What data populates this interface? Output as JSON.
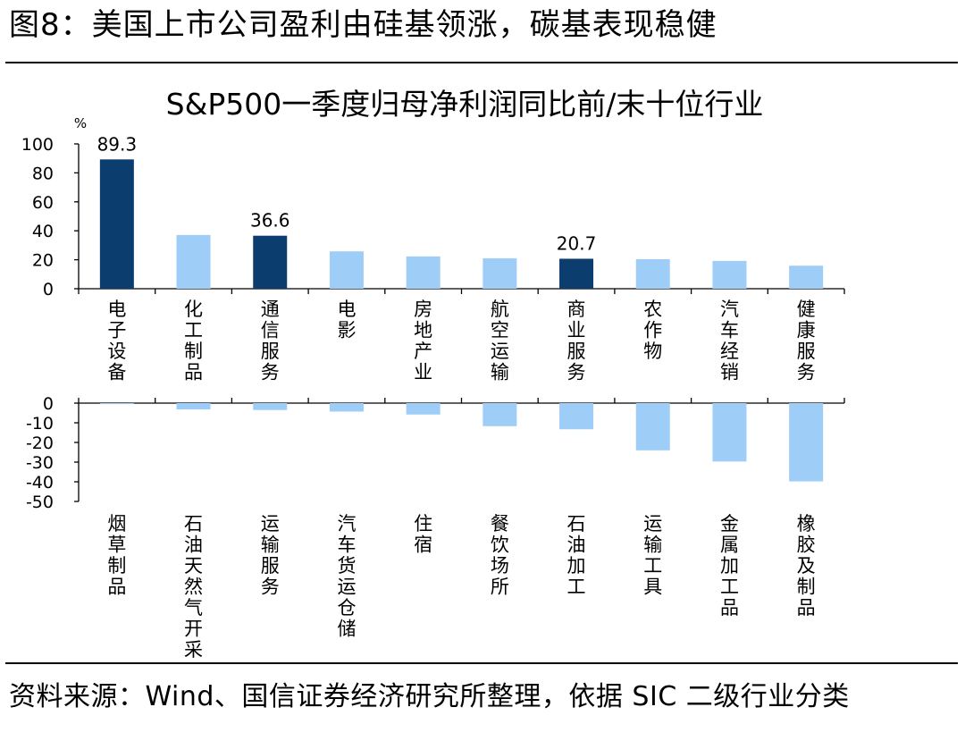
{
  "figure_title": "图8：美国上市公司盈利由硅基领涨，碳基表现稳健",
  "source": "资料来源：Wind、国信证券经济研究所整理，依据 SIC 二级行业分类",
  "colors": {
    "highlight": "#0b3d6e",
    "normal": "#9ecdf7",
    "axis": "#000000"
  },
  "chart_data": [
    {
      "type": "bar",
      "title": "S&P500一季度归母净利润同比前/末十位行业",
      "ylabel": "%",
      "ylim": [
        0,
        100
      ],
      "yticks": [
        0,
        20,
        40,
        60,
        80,
        100
      ],
      "categories": [
        "电子设备",
        "化工制品",
        "通信服务",
        "电影",
        "房地产业",
        "航空运输",
        "商业服务",
        "农作物",
        "汽车经销",
        "健康服务"
      ],
      "values": [
        89.3,
        37.1,
        36.6,
        25.8,
        22.3,
        21.0,
        20.7,
        20.4,
        19.2,
        15.9
      ],
      "highlighted": [
        true,
        false,
        true,
        false,
        false,
        false,
        true,
        false,
        false,
        false
      ],
      "data_labels": [
        "89.3",
        "",
        "36.6",
        "",
        "",
        "",
        "20.7",
        "",
        "",
        ""
      ],
      "grid": false,
      "legend": "none"
    },
    {
      "type": "bar",
      "ylim": [
        -50,
        0
      ],
      "yticks": [
        0,
        -10,
        -20,
        -30,
        -40,
        -50
      ],
      "categories": [
        "烟草制品",
        "石油天然气开采",
        "运输服务",
        "汽车货运仓储",
        "住宿",
        "餐饮场所",
        "石油加工",
        "运输工具",
        "金属加工品",
        "橡胶及制品"
      ],
      "values": [
        -0.5,
        -3.2,
        -3.5,
        -4.3,
        -5.8,
        -11.7,
        -13.3,
        -24.0,
        -29.7,
        -39.8
      ],
      "grid": false,
      "legend": "none"
    }
  ]
}
